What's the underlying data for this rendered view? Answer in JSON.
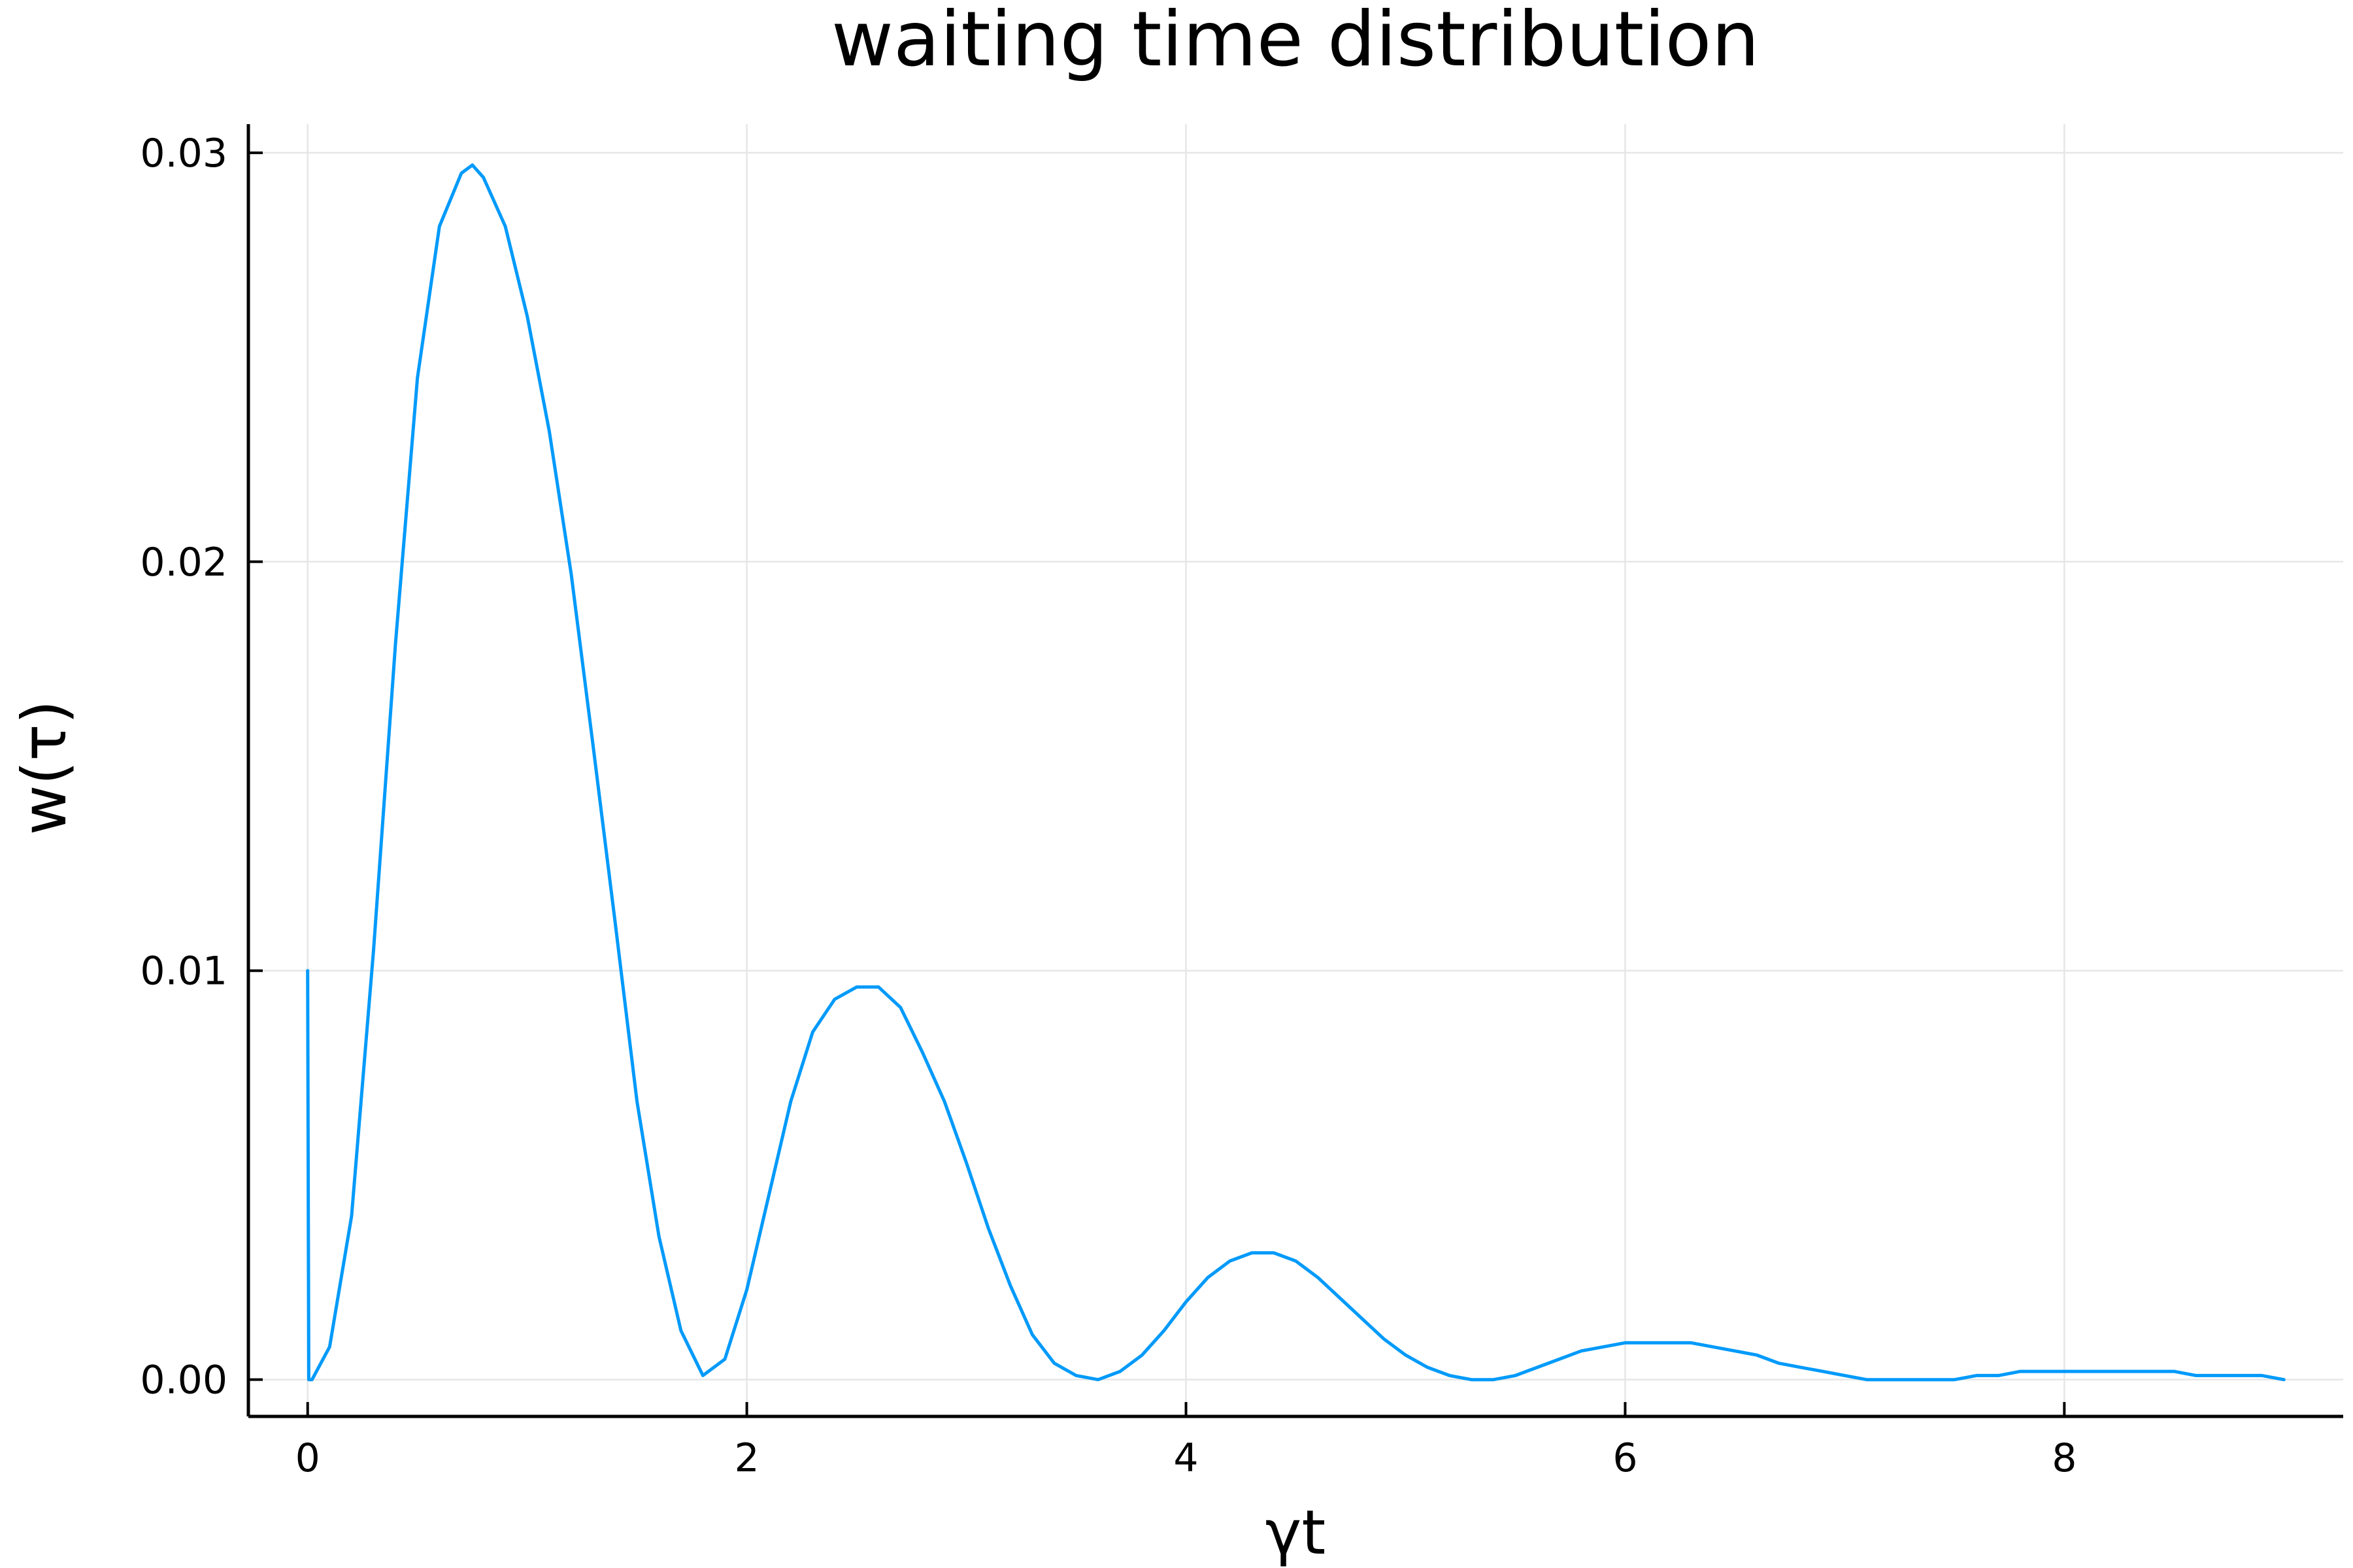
{
  "chart_data": {
    "type": "line",
    "title": "waiting time distribution",
    "xlabel": "γt",
    "ylabel": "w(τ)",
    "xlim": [
      -0.27,
      9.27
    ],
    "ylim": [
      -0.0009,
      0.0307
    ],
    "xticks": [
      0,
      2,
      4,
      6,
      8
    ],
    "xtick_labels": [
      "0",
      "2",
      "4",
      "6",
      "8"
    ],
    "yticks": [
      0.0,
      0.01,
      0.02,
      0.03
    ],
    "ytick_labels": [
      "0.00",
      "0.01",
      "0.02",
      "0.03"
    ],
    "grid": true,
    "legend": "none",
    "series": [
      {
        "color": "#009AFA",
        "x": [
          0.0,
          0.005,
          0.02,
          0.1,
          0.2,
          0.3,
          0.4,
          0.5,
          0.6,
          0.7,
          0.75,
          0.8,
          0.9,
          1.0,
          1.1,
          1.2,
          1.3,
          1.4,
          1.5,
          1.6,
          1.7,
          1.8,
          1.9,
          2.0,
          2.1,
          2.2,
          2.3,
          2.4,
          2.5,
          2.6,
          2.7,
          2.8,
          2.9,
          3.0,
          3.1,
          3.2,
          3.3,
          3.4,
          3.5,
          3.6,
          3.7,
          3.8,
          3.9,
          4.0,
          4.1,
          4.2,
          4.3,
          4.4,
          4.5,
          4.6,
          4.7,
          4.8,
          4.9,
          5.0,
          5.1,
          5.2,
          5.3,
          5.4,
          5.5,
          5.6,
          5.7,
          5.8,
          5.9,
          6.0,
          6.1,
          6.2,
          6.3,
          6.4,
          6.5,
          6.6,
          6.7,
          6.8,
          6.9,
          7.0,
          7.1,
          7.2,
          7.3,
          7.4,
          7.5,
          7.6,
          7.7,
          7.8,
          7.9,
          8.0,
          8.1,
          8.2,
          8.3,
          8.4,
          8.5,
          8.6,
          8.7,
          8.8,
          8.9,
          9.0
        ],
        "y": [
          0.01,
          0.0,
          0.0,
          0.0008,
          0.004,
          0.0105,
          0.018,
          0.0245,
          0.0282,
          0.0295,
          0.0297,
          0.0294,
          0.0282,
          0.026,
          0.0232,
          0.0197,
          0.0155,
          0.0112,
          0.0068,
          0.0035,
          0.0012,
          0.0001,
          0.0005,
          0.0022,
          0.0045,
          0.0068,
          0.0085,
          0.0093,
          0.0096,
          0.0096,
          0.0091,
          0.008,
          0.0068,
          0.0053,
          0.0037,
          0.0023,
          0.0011,
          0.0004,
          0.0001,
          0.0,
          0.0002,
          0.0006,
          0.0012,
          0.0019,
          0.0025,
          0.0029,
          0.0031,
          0.0031,
          0.0029,
          0.0025,
          0.002,
          0.0015,
          0.001,
          0.0006,
          0.0003,
          0.0001,
          0.0,
          0.0,
          0.0001,
          0.0003,
          0.0005,
          0.0007,
          0.0008,
          0.0009,
          0.0009,
          0.0009,
          0.0009,
          0.0008,
          0.0007,
          0.0006,
          0.0004,
          0.0003,
          0.0002,
          0.0001,
          0.0,
          0.0,
          0.0,
          0.0,
          0.0,
          0.0001,
          0.0001,
          0.0002,
          0.0002,
          0.0002,
          0.0002,
          0.0002,
          0.0002,
          0.0002,
          0.0002,
          0.0001,
          0.0001,
          0.0001,
          0.0001,
          0.0
        ]
      }
    ]
  }
}
